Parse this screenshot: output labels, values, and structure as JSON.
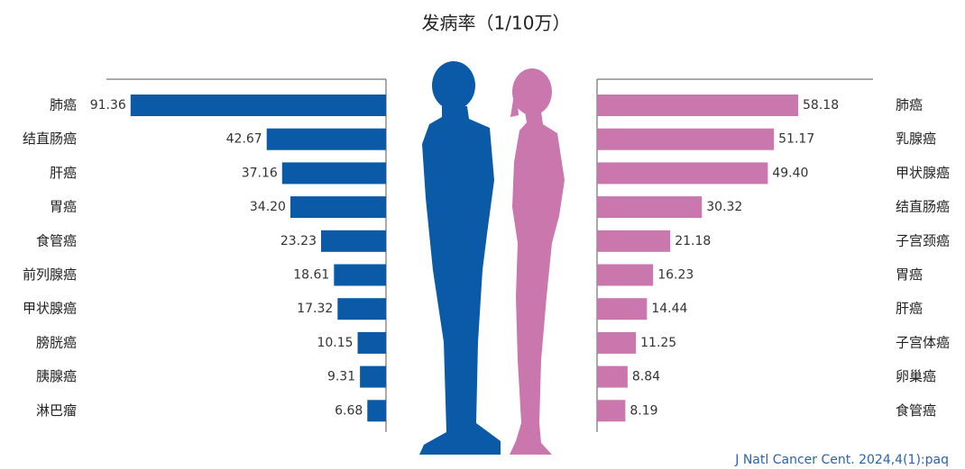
{
  "title": "发病率（1/10万）",
  "source": "J Natl Cancer Cent. 2024,4(1):paq",
  "chart_data": [
    {
      "type": "bar",
      "color": "#0b5aa8",
      "xlim": [
        0,
        100
      ],
      "categories": [
        "肺癌",
        "结直肠癌",
        "肝癌",
        "胃癌",
        "食管癌",
        "前列腺癌",
        "甲状腺癌",
        "膀胱癌",
        "胰腺癌",
        "淋巴瘤"
      ],
      "values": [
        91.36,
        42.67,
        37.16,
        34.2,
        23.23,
        18.61,
        17.32,
        10.15,
        9.31,
        6.68
      ],
      "value_labels": [
        "91.36",
        "42.67",
        "37.16",
        "34.20",
        "23.23",
        "18.61",
        "17.32",
        "10.15",
        "9.31",
        "6.68"
      ]
    },
    {
      "type": "bar",
      "color": "#c977ac",
      "xlim": [
        0,
        60
      ],
      "categories": [
        "肺癌",
        "乳腺癌",
        "甲状腺癌",
        "结直肠癌",
        "子宫颈癌",
        "胃癌",
        "肝癌",
        "子宫体癌",
        "卵巢癌",
        "食管癌"
      ],
      "values": [
        58.18,
        51.17,
        49.4,
        30.32,
        21.18,
        16.23,
        14.44,
        11.25,
        8.84,
        8.19
      ],
      "value_labels": [
        "58.18",
        "51.17",
        "49.40",
        "30.32",
        "21.18",
        "16.23",
        "14.44",
        "11.25",
        "8.84",
        "8.19"
      ]
    }
  ]
}
